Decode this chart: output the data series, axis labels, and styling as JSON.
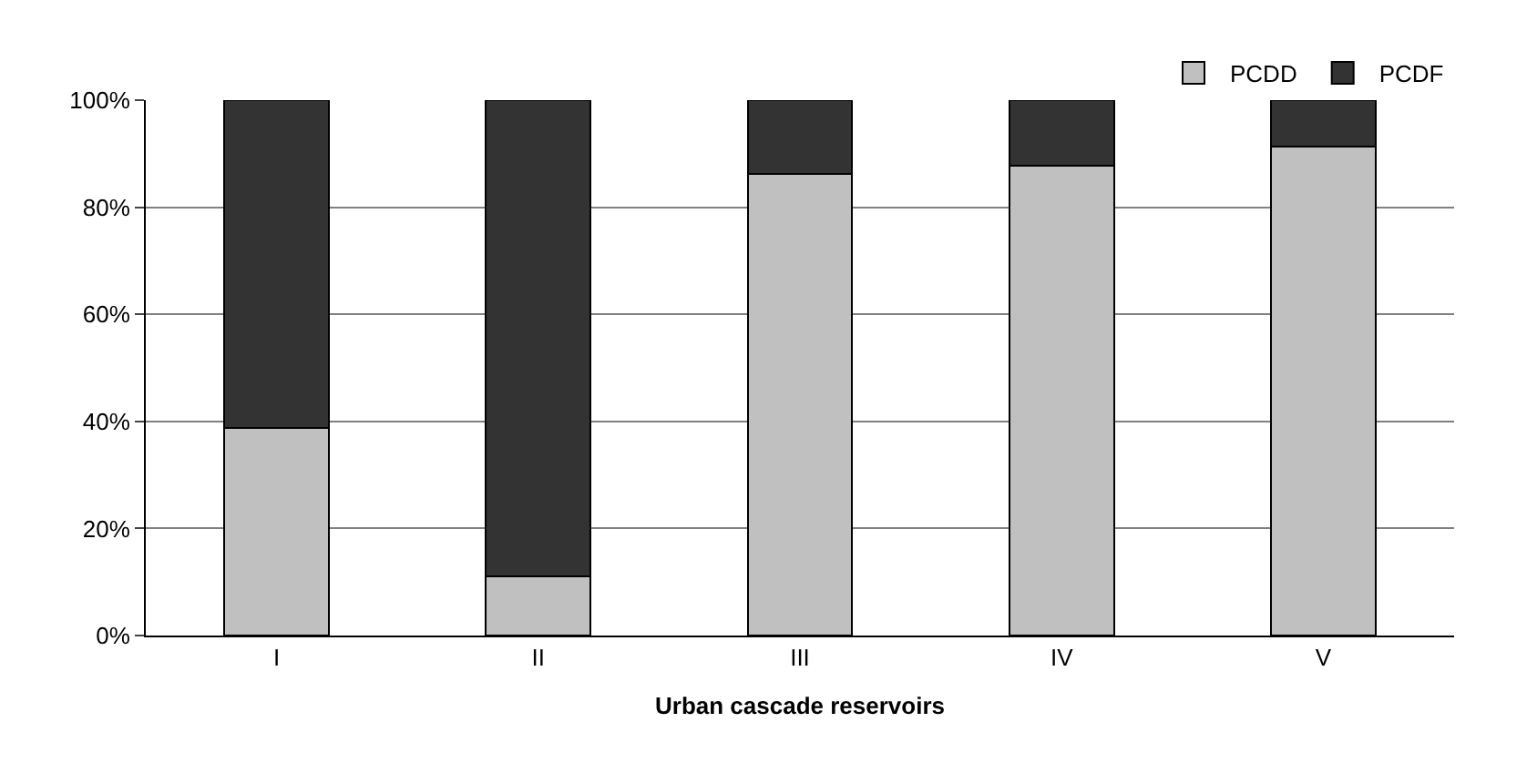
{
  "chart_data": {
    "type": "bar",
    "stacked": true,
    "xlabel": "Urban cascade reservoirs",
    "categories": [
      "I",
      "II",
      "III",
      "IV",
      "V"
    ],
    "series": [
      {
        "name": "PCDD",
        "color": "#c0c0c0",
        "values": [
          38.7,
          11.0,
          86.2,
          87.7,
          91.3
        ]
      },
      {
        "name": "PCDF",
        "color": "#333333",
        "values": [
          61.3,
          89.0,
          13.8,
          12.3,
          8.7
        ]
      }
    ],
    "ylim": [
      0,
      100
    ],
    "yticks": [
      {
        "value": 0,
        "label": "0%"
      },
      {
        "value": 20,
        "label": "20%"
      },
      {
        "value": 40,
        "label": "40%"
      },
      {
        "value": 60,
        "label": "60%"
      },
      {
        "value": 80,
        "label": "80%"
      },
      {
        "value": 100,
        "label": "100%"
      }
    ],
    "grid": "y",
    "legend": "top right"
  }
}
